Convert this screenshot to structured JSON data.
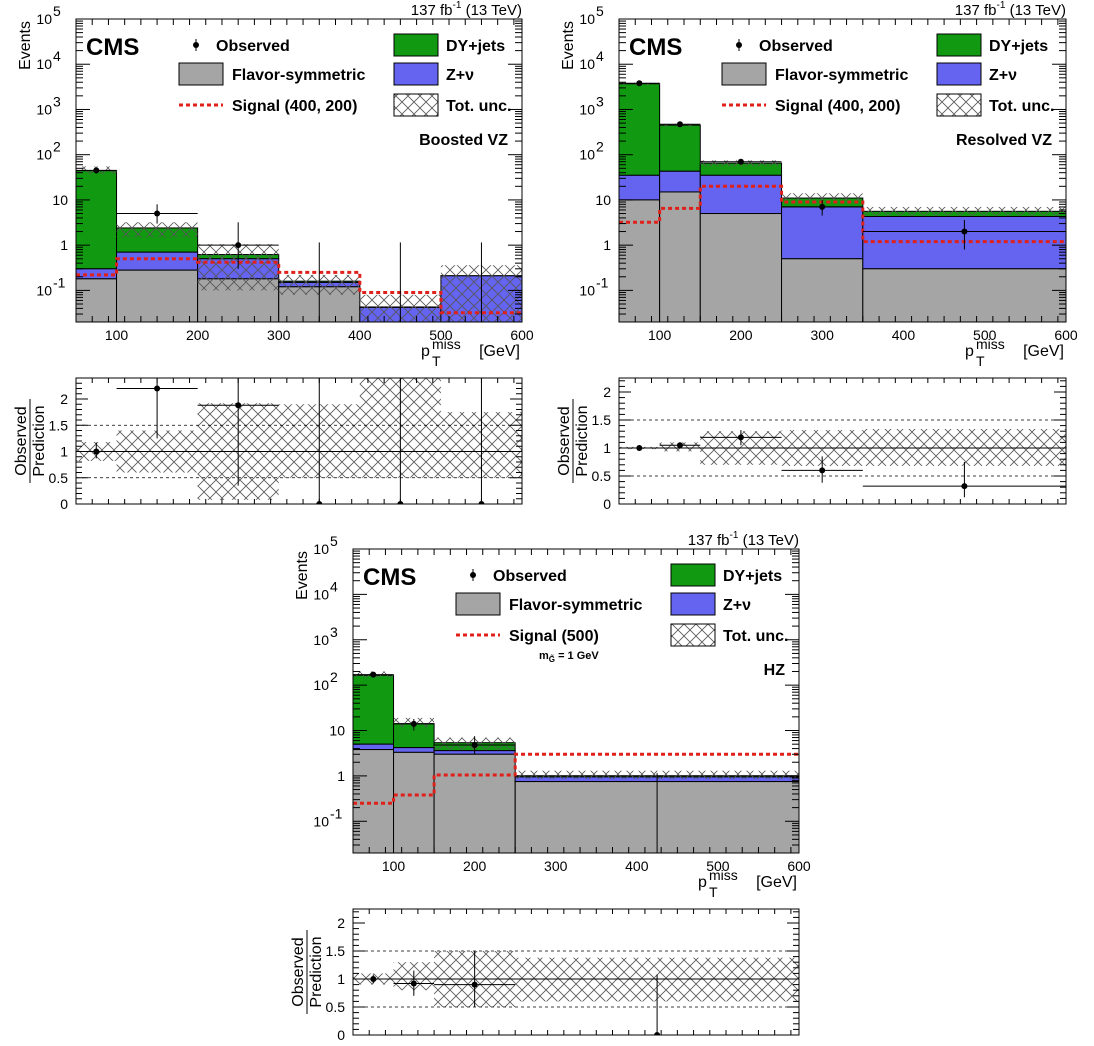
{
  "common": {
    "lumi": "137 fb",
    "lumi_sup": "-1",
    "lumi_tail": "(13 TeV)",
    "cms": "CMS",
    "y_label_top": "Events",
    "x_label_main": "p",
    "x_label_sub": "T",
    "x_label_sup": "miss",
    "x_label_unit": "[GeV]",
    "ratio_num": "Observed",
    "ratio_den": "Prediction",
    "legend": {
      "observed": "Observed",
      "dy": "DY+jets",
      "flavor": "Flavor-symmetric",
      "znu": "Z+ν",
      "tot_unc": "Tot. unc."
    },
    "colors": {
      "dy": "#119a11",
      "flavor": "#a5a5a5",
      "znu": "#6464f0",
      "signal": "#e0201b",
      "observed": "#000000"
    }
  },
  "chart_data": [
    {
      "type": "bar",
      "region": "Boosted VZ",
      "signal_label": "Signal (400, 200)",
      "signal_note": "",
      "y_scale": "log",
      "ylim": [
        0.02,
        100000
      ],
      "xlim": [
        50,
        600
      ],
      "x_ticks": [
        100,
        200,
        300,
        400,
        500,
        600
      ],
      "bins": [
        50,
        100,
        200,
        300,
        400,
        500,
        600
      ],
      "flavor_symmetric": [
        0.18,
        0.28,
        0.18,
        0.12,
        0.02,
        0.02
      ],
      "z_nu": [
        0.12,
        0.42,
        0.32,
        0.03,
        0.022,
        0.19
      ],
      "dy_jets": [
        44,
        1.7,
        0.12,
        0.01,
        0.001,
        0.001
      ],
      "total_unc_band": [
        [
          38,
          55
        ],
        [
          1.5,
          3.2
        ],
        [
          0.1,
          1.05
        ],
        [
          0.08,
          0.22
        ],
        [
          0.02,
          0.08
        ],
        [
          0.02,
          0.36
        ]
      ],
      "signal": [
        0.22,
        0.5,
        0.42,
        0.25,
        0.09,
        0.032
      ],
      "observed": {
        "x": [
          75,
          150,
          250,
          350,
          450,
          550
        ],
        "y": [
          45,
          5,
          1,
          0,
          0,
          0
        ],
        "yerr_hi": [
          52,
          8,
          3.2,
          1.15,
          1.15,
          1.15
        ],
        "yerr_lo": [
          38,
          3,
          0.3,
          0.02,
          0.02,
          0.02
        ],
        "xerr_lo": [
          50,
          100,
          200,
          300,
          400,
          500
        ],
        "xerr_hi": [
          100,
          200,
          300,
          400,
          500,
          600
        ]
      },
      "ratio": {
        "ylim": [
          0,
          2.4
        ],
        "y_ticks": [
          0,
          0.5,
          1,
          1.5,
          2
        ],
        "y_tick_labels": [
          "0",
          "0.5",
          "1",
          "1.5",
          "2"
        ],
        "points": [
          {
            "x": 75,
            "y": 1.0,
            "lo": 0.87,
            "hi": 1.17,
            "xl": 50,
            "xh": 100
          },
          {
            "x": 150,
            "y": 2.2,
            "lo": 1.25,
            "hi": 3.5,
            "xl": 100,
            "xh": 200
          },
          {
            "x": 250,
            "y": 1.88,
            "lo": 0.35,
            "hi": 3.5,
            "xl": 200,
            "xh": 300
          },
          {
            "x": 350,
            "y": 0,
            "lo": 0,
            "hi": 3.5,
            "xl": 300,
            "xh": 400
          },
          {
            "x": 450,
            "y": 0,
            "lo": 0,
            "hi": 3.5,
            "xl": 400,
            "xh": 500
          },
          {
            "x": 550,
            "y": 0,
            "lo": 0,
            "hi": 3.5,
            "xl": 500,
            "xh": 600
          }
        ],
        "band": [
          [
            0.82,
            1.18
          ],
          [
            0.6,
            1.4
          ],
          [
            0.08,
            1.92
          ],
          [
            0.5,
            1.9
          ],
          [
            0.5,
            2.6
          ],
          [
            0.5,
            1.75
          ]
        ]
      }
    },
    {
      "type": "bar",
      "region": "Resolved VZ",
      "signal_label": "Signal (400, 200)",
      "signal_note": "",
      "y_scale": "log",
      "ylim": [
        0.02,
        100000
      ],
      "xlim": [
        50,
        600
      ],
      "x_ticks": [
        100,
        200,
        300,
        400,
        500,
        600
      ],
      "bins": [
        50,
        100,
        150,
        250,
        350,
        600
      ],
      "flavor_symmetric": [
        10,
        15,
        5,
        0.5,
        0.3
      ],
      "z_nu": [
        25,
        28,
        30,
        6.5,
        4
      ],
      "dy_jets": [
        3665,
        407,
        30,
        4,
        1.3
      ],
      "total_unc_band": [
        [
          3500,
          3900
        ],
        [
          420,
          480
        ],
        [
          55,
          75
        ],
        [
          10,
          14
        ],
        [
          4.5,
          7
        ]
      ],
      "signal": [
        3.2,
        6.5,
        20,
        9,
        1.2
      ],
      "observed": {
        "x": [
          75,
          125,
          200,
          300,
          475
        ],
        "y": [
          3800,
          470,
          70,
          7,
          2
        ],
        "yerr_hi": [
          3900,
          500,
          80,
          10,
          3.6
        ],
        "yerr_lo": [
          3700,
          440,
          61,
          4.5,
          0.8
        ],
        "xerr_lo": [
          50,
          100,
          150,
          250,
          350
        ],
        "xerr_hi": [
          100,
          150,
          250,
          350,
          600
        ]
      },
      "ratio": {
        "ylim": [
          0,
          2.25
        ],
        "y_ticks": [
          0,
          0.5,
          1,
          1.5,
          2
        ],
        "y_tick_labels": [
          "0",
          "0.5",
          "1",
          "1.5",
          "2"
        ],
        "points": [
          {
            "x": 75,
            "y": 1.0,
            "lo": 0.98,
            "hi": 1.02,
            "xl": 50,
            "xh": 100
          },
          {
            "x": 125,
            "y": 1.05,
            "lo": 0.99,
            "hi": 1.1,
            "xl": 100,
            "xh": 150
          },
          {
            "x": 200,
            "y": 1.19,
            "lo": 1.05,
            "hi": 1.32,
            "xl": 150,
            "xh": 250
          },
          {
            "x": 300,
            "y": 0.6,
            "lo": 0.38,
            "hi": 0.85,
            "xl": 250,
            "xh": 350
          },
          {
            "x": 475,
            "y": 0.32,
            "lo": 0.12,
            "hi": 0.75,
            "xl": 350,
            "xh": 600
          }
        ],
        "band": [
          [
            0.98,
            1.02
          ],
          [
            0.94,
            1.1
          ],
          [
            0.7,
            1.3
          ],
          [
            0.68,
            1.32
          ],
          [
            0.68,
            1.34
          ]
        ]
      }
    },
    {
      "type": "bar",
      "region": "HZ",
      "signal_label": "Signal (500)",
      "signal_note": "m",
      "signal_note_sub": "G̃",
      "signal_note_tail": "= 1 GeV",
      "y_scale": "log",
      "ylim": [
        0.02,
        100000
      ],
      "xlim": [
        50,
        600
      ],
      "x_ticks": [
        100,
        200,
        300,
        400,
        500,
        600
      ],
      "bins": [
        50,
        100,
        150,
        250,
        600
      ],
      "flavor_symmetric": [
        3.8,
        3.3,
        3.0,
        0.75
      ],
      "z_nu": [
        1.2,
        0.9,
        0.6,
        0.2
      ],
      "dy_jets": [
        160,
        10,
        1.8,
        0.06
      ],
      "total_unc_band": [
        [
          150,
          200
        ],
        [
          12,
          19
        ],
        [
          3.8,
          7
        ],
        [
          0.85,
          1.3
        ]
      ],
      "signal": [
        0.25,
        0.38,
        1.05,
        3.0
      ],
      "observed": {
        "x": [
          75,
          125,
          200,
          425
        ],
        "y": [
          170,
          14,
          4.8,
          0
        ],
        "yerr_hi": [
          185,
          18,
          7.5,
          1.15
        ],
        "yerr_lo": [
          155,
          10,
          3,
          0.02
        ],
        "xerr_lo": [
          50,
          100,
          150,
          250
        ],
        "xerr_hi": [
          100,
          150,
          250,
          600
        ]
      },
      "ratio": {
        "ylim": [
          0,
          2.25
        ],
        "y_ticks": [
          0,
          0.5,
          1,
          1.5,
          2
        ],
        "y_tick_labels": [
          "0",
          "0.5",
          "1",
          "1.5",
          "2"
        ],
        "points": [
          {
            "x": 75,
            "y": 1.0,
            "lo": 0.92,
            "hi": 1.08,
            "xl": 50,
            "xh": 100
          },
          {
            "x": 125,
            "y": 0.92,
            "lo": 0.7,
            "hi": 1.15,
            "xl": 100,
            "xh": 150
          },
          {
            "x": 200,
            "y": 0.9,
            "lo": 0.5,
            "hi": 1.5,
            "xl": 150,
            "xh": 250
          },
          {
            "x": 425,
            "y": 0,
            "lo": 0,
            "hi": 1.08,
            "xl": 250,
            "xh": 600
          }
        ],
        "band": [
          [
            0.9,
            1.1
          ],
          [
            0.8,
            1.3
          ],
          [
            0.5,
            1.5
          ],
          [
            0.6,
            1.38
          ]
        ]
      }
    }
  ]
}
